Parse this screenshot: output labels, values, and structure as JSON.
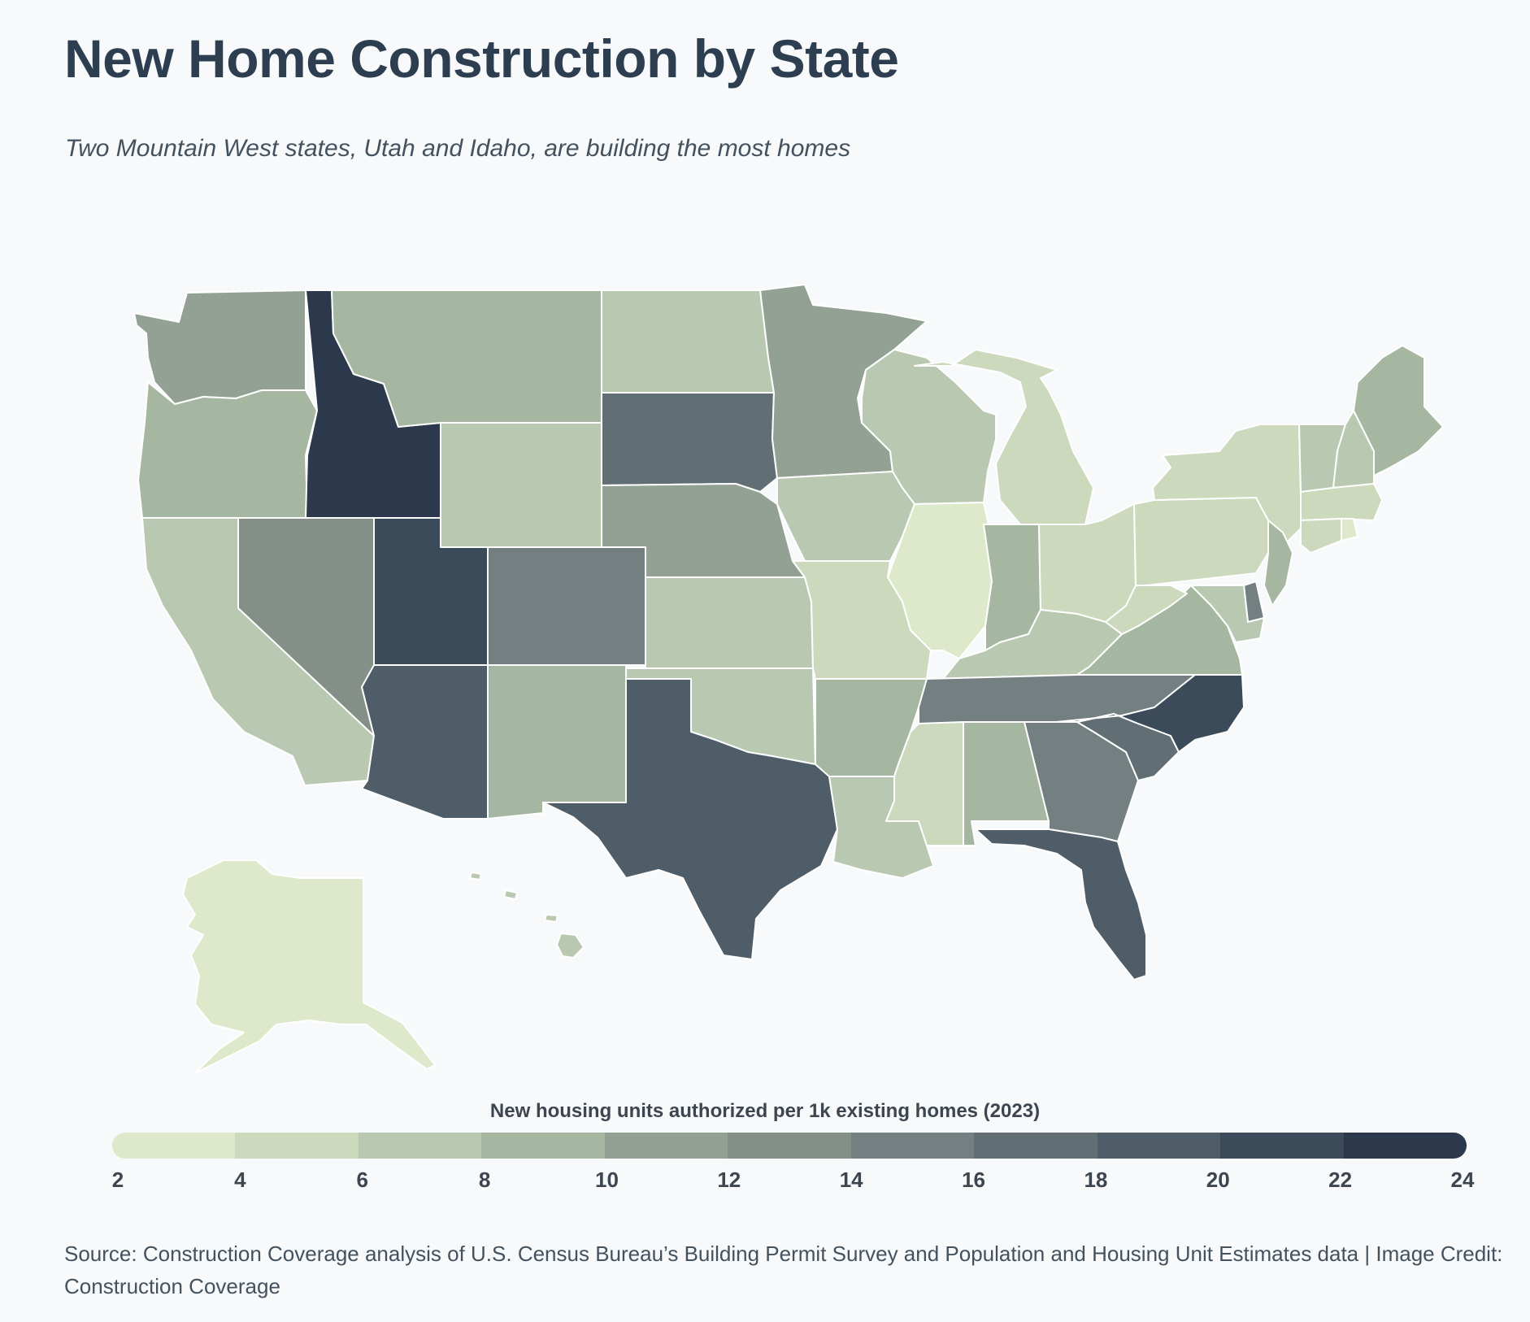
{
  "header": {
    "title": "New Home Construction by State",
    "subtitle": "Two Mountain West states, Utah and Idaho, are building the most homes"
  },
  "legend": {
    "title": "New housing units authorized per 1k existing homes (2023)",
    "ticks": [
      "2",
      "4",
      "6",
      "8",
      "10",
      "12",
      "14",
      "16",
      "18",
      "20",
      "22",
      "24"
    ],
    "colors": [
      "#dee9cc",
      "#ccd9bd",
      "#b9c8b1",
      "#a5b6a1",
      "#93a195",
      "#848f88",
      "#737f80",
      "#616f75",
      "#4f5d68",
      "#3c4b5a",
      "#2c394d"
    ]
  },
  "map_data": {
    "metric": "New housing units authorized per 1k existing homes (2023)",
    "states": [
      {
        "code": "WA",
        "value": 11
      },
      {
        "code": "OR",
        "value": 9
      },
      {
        "code": "CA",
        "value": 7
      },
      {
        "code": "ID",
        "value": 23
      },
      {
        "code": "NV",
        "value": 13
      },
      {
        "code": "MT",
        "value": 9
      },
      {
        "code": "WY",
        "value": 7
      },
      {
        "code": "UT",
        "value": 21
      },
      {
        "code": "AZ",
        "value": 19
      },
      {
        "code": "CO",
        "value": 15
      },
      {
        "code": "NM",
        "value": 9
      },
      {
        "code": "ND",
        "value": 7
      },
      {
        "code": "SD",
        "value": 17
      },
      {
        "code": "NE",
        "value": 11
      },
      {
        "code": "KS",
        "value": 7
      },
      {
        "code": "OK",
        "value": 7
      },
      {
        "code": "TX",
        "value": 19
      },
      {
        "code": "MN",
        "value": 11
      },
      {
        "code": "IA",
        "value": 7
      },
      {
        "code": "MO",
        "value": 5
      },
      {
        "code": "AR",
        "value": 9
      },
      {
        "code": "LA",
        "value": 7
      },
      {
        "code": "WI",
        "value": 7
      },
      {
        "code": "IL",
        "value": 3
      },
      {
        "code": "MI",
        "value": 5
      },
      {
        "code": "IN",
        "value": 9
      },
      {
        "code": "OH",
        "value": 5
      },
      {
        "code": "KY",
        "value": 7
      },
      {
        "code": "TN",
        "value": 15
      },
      {
        "code": "MS",
        "value": 5
      },
      {
        "code": "AL",
        "value": 9
      },
      {
        "code": "GA",
        "value": 15
      },
      {
        "code": "FL",
        "value": 19
      },
      {
        "code": "SC",
        "value": 17
      },
      {
        "code": "NC",
        "value": 21
      },
      {
        "code": "VA",
        "value": 9
      },
      {
        "code": "WV",
        "value": 5
      },
      {
        "code": "PA",
        "value": 5
      },
      {
        "code": "NY",
        "value": 5
      },
      {
        "code": "VT",
        "value": 7
      },
      {
        "code": "NH",
        "value": 7
      },
      {
        "code": "ME",
        "value": 9
      },
      {
        "code": "MA",
        "value": 5
      },
      {
        "code": "CT",
        "value": 5
      },
      {
        "code": "RI",
        "value": 3
      },
      {
        "code": "NJ",
        "value": 9
      },
      {
        "code": "DE",
        "value": 15
      },
      {
        "code": "MD",
        "value": 7
      },
      {
        "code": "AK",
        "value": 3
      },
      {
        "code": "HI",
        "value": 7
      }
    ]
  },
  "footer": {
    "source": "Source: Construction Coverage analysis of U.S. Census Bureau’s Building Permit Survey and Population and Housing Unit Estimates data | Image Credit: Construction Coverage"
  }
}
